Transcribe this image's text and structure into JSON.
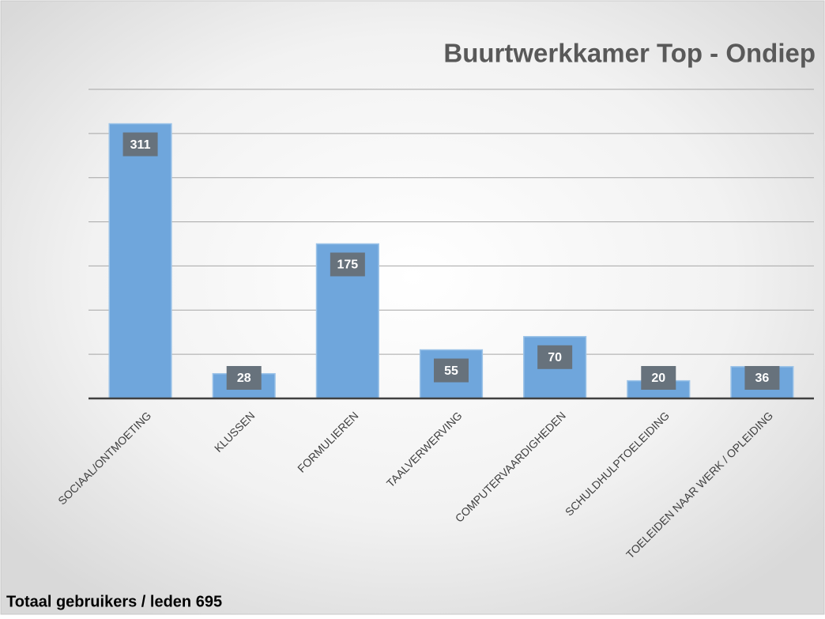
{
  "chart_data": {
    "type": "bar",
    "title": "Buurtwerkkamer Top - Ondiep",
    "categories": [
      "SOCIAAL/ONTMOETING",
      "KLUSSEN",
      "FORMULIEREN",
      "TAALVERWERVING",
      "COMPUTERVAARDIGHEDEN",
      "SCHULDHULPTOELEIDING",
      "TOELEIDEN NAAR WERK / OPLEIDING"
    ],
    "values": [
      311,
      28,
      175,
      55,
      70,
      20,
      36
    ],
    "color": "#6fa6dc",
    "ylim": [
      0,
      350
    ],
    "yticks": [
      0,
      50,
      100,
      150,
      200,
      250,
      300,
      350
    ],
    "grid": true,
    "footnote": "Totaal gebruikers / leden 695"
  }
}
